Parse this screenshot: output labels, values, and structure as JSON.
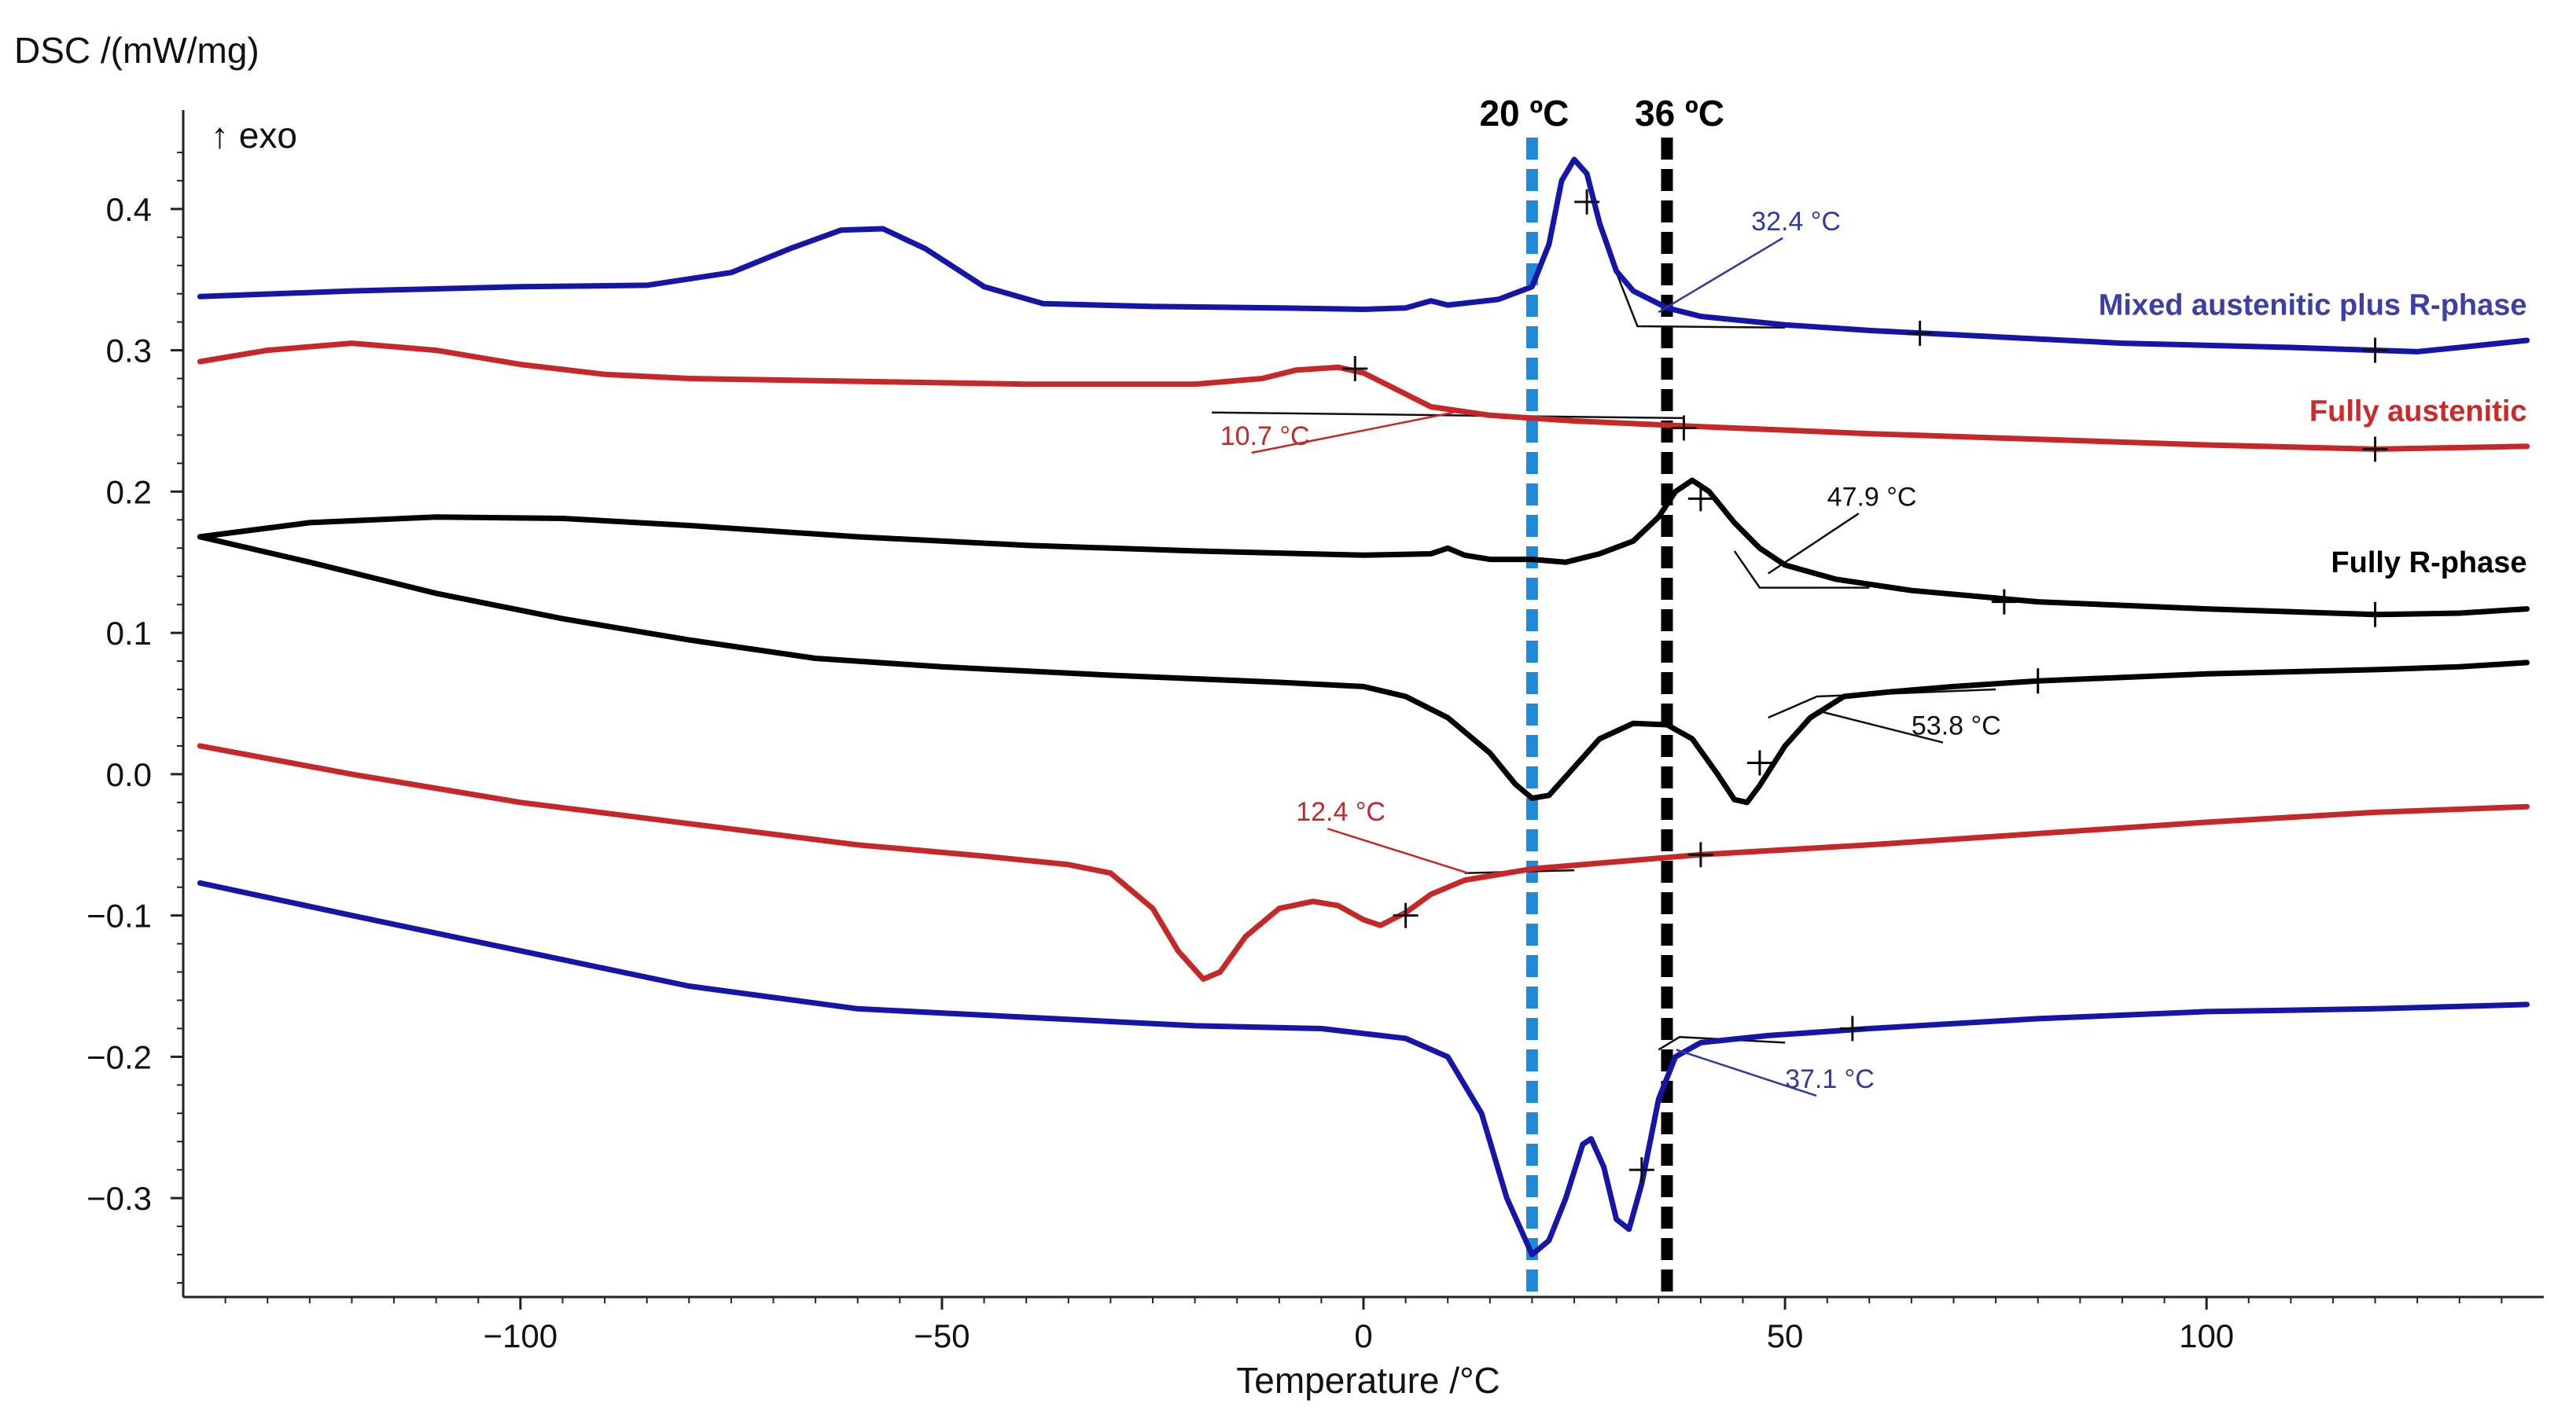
{
  "chart_data": {
    "type": "line",
    "title": "",
    "xlabel": "Temperature /°C",
    "ylabel": "DSC /(mW/mg)",
    "ylabel_note": "↑ exo",
    "xlim": [
      -140,
      140
    ],
    "ylim": [
      -0.37,
      0.47
    ],
    "xticks": [
      -100,
      -50,
      0,
      50,
      100
    ],
    "xtick_labels": [
      "−100",
      "−50",
      "0",
      "50",
      "100"
    ],
    "yticks": [
      0.4,
      0.3,
      0.2,
      0.1,
      0.0,
      -0.1,
      -0.2,
      -0.3
    ],
    "ytick_labels": [
      "0.4",
      "0.3",
      "0.2",
      "0.1",
      "0.0",
      "−0.1",
      "−0.2",
      "−0.3"
    ],
    "grid": false,
    "reference_lines": [
      {
        "x": 20,
        "label": "20 ºC",
        "color": "#1f8ad9"
      },
      {
        "x": 36,
        "label": "36 ºC",
        "color": "#000000"
      }
    ],
    "series_labels": [
      {
        "text": "Mixed austenitic plus R-phase",
        "color": "#3b3fa6",
        "x": 138,
        "y": 0.325
      },
      {
        "text": "Fully austenitic",
        "color": "#cc2a2a",
        "x": 138,
        "y": 0.25
      },
      {
        "text": "Fully R-phase",
        "color": "#000000",
        "x": 138,
        "y": 0.143
      }
    ],
    "series": [
      {
        "name": "Mixed austenitic plus R-phase (cooling)",
        "color": "#1515a8",
        "points": [
          [
            -138,
            0.338
          ],
          [
            -120,
            0.342
          ],
          [
            -100,
            0.345
          ],
          [
            -85,
            0.346
          ],
          [
            -75,
            0.355
          ],
          [
            -68,
            0.372
          ],
          [
            -62,
            0.385
          ],
          [
            -57,
            0.386
          ],
          [
            -52,
            0.372
          ],
          [
            -45,
            0.345
          ],
          [
            -38,
            0.333
          ],
          [
            -25,
            0.331
          ],
          [
            -10,
            0.33
          ],
          [
            0,
            0.329
          ],
          [
            5,
            0.33
          ],
          [
            8,
            0.335
          ],
          [
            10,
            0.332
          ],
          [
            16,
            0.336
          ],
          [
            20,
            0.345
          ],
          [
            22,
            0.375
          ],
          [
            23.5,
            0.42
          ],
          [
            25,
            0.435
          ],
          [
            26.5,
            0.425
          ],
          [
            28,
            0.39
          ],
          [
            30,
            0.356
          ],
          [
            32,
            0.342
          ],
          [
            36,
            0.33
          ],
          [
            40,
            0.324
          ],
          [
            50,
            0.318
          ],
          [
            60,
            0.314
          ],
          [
            70,
            0.311
          ],
          [
            90,
            0.305
          ],
          [
            110,
            0.302
          ],
          [
            120,
            0.3
          ],
          [
            125,
            0.299
          ],
          [
            130,
            0.302
          ],
          [
            138,
            0.307
          ]
        ]
      },
      {
        "name": "Fully austenitic (cooling)",
        "color": "#c62828",
        "points": [
          [
            -138,
            0.292
          ],
          [
            -130,
            0.3
          ],
          [
            -120,
            0.305
          ],
          [
            -110,
            0.3
          ],
          [
            -100,
            0.29
          ],
          [
            -90,
            0.283
          ],
          [
            -80,
            0.28
          ],
          [
            -60,
            0.278
          ],
          [
            -40,
            0.276
          ],
          [
            -30,
            0.276
          ],
          [
            -20,
            0.276
          ],
          [
            -12,
            0.28
          ],
          [
            -8,
            0.286
          ],
          [
            -3,
            0.288
          ],
          [
            0,
            0.284
          ],
          [
            4,
            0.272
          ],
          [
            8,
            0.26
          ],
          [
            15,
            0.254
          ],
          [
            25,
            0.25
          ],
          [
            40,
            0.246
          ],
          [
            60,
            0.241
          ],
          [
            80,
            0.237
          ],
          [
            100,
            0.233
          ],
          [
            120,
            0.23
          ],
          [
            138,
            0.232
          ]
        ]
      },
      {
        "name": "Fully R-phase (cooling)",
        "color": "#000000",
        "points": [
          [
            -138,
            0.168
          ],
          [
            -125,
            0.178
          ],
          [
            -110,
            0.182
          ],
          [
            -95,
            0.181
          ],
          [
            -80,
            0.176
          ],
          [
            -60,
            0.168
          ],
          [
            -40,
            0.162
          ],
          [
            -20,
            0.158
          ],
          [
            0,
            0.155
          ],
          [
            8,
            0.156
          ],
          [
            10,
            0.16
          ],
          [
            12,
            0.155
          ],
          [
            15,
            0.152
          ],
          [
            20,
            0.152
          ],
          [
            24,
            0.15
          ],
          [
            28,
            0.156
          ],
          [
            32,
            0.165
          ],
          [
            35,
            0.182
          ],
          [
            37,
            0.2
          ],
          [
            39,
            0.208
          ],
          [
            41,
            0.2
          ],
          [
            44,
            0.178
          ],
          [
            47,
            0.16
          ],
          [
            50,
            0.148
          ],
          [
            56,
            0.138
          ],
          [
            65,
            0.13
          ],
          [
            80,
            0.122
          ],
          [
            100,
            0.117
          ],
          [
            120,
            0.113
          ],
          [
            130,
            0.114
          ],
          [
            138,
            0.117
          ]
        ]
      },
      {
        "name": "Fully R-phase (heating)",
        "color": "#000000",
        "points": [
          [
            -138,
            0.168
          ],
          [
            -125,
            0.15
          ],
          [
            -110,
            0.128
          ],
          [
            -95,
            0.11
          ],
          [
            -80,
            0.095
          ],
          [
            -65,
            0.082
          ],
          [
            -50,
            0.076
          ],
          [
            -30,
            0.07
          ],
          [
            -10,
            0.065
          ],
          [
            0,
            0.062
          ],
          [
            5,
            0.055
          ],
          [
            10,
            0.04
          ],
          [
            15,
            0.015
          ],
          [
            18,
            -0.007
          ],
          [
            20,
            -0.017
          ],
          [
            22,
            -0.015
          ],
          [
            25,
            0.005
          ],
          [
            28,
            0.025
          ],
          [
            32,
            0.036
          ],
          [
            36,
            0.035
          ],
          [
            39,
            0.025
          ],
          [
            42,
            0.0
          ],
          [
            44,
            -0.018
          ],
          [
            45.5,
            -0.02
          ],
          [
            47,
            -0.008
          ],
          [
            50,
            0.02
          ],
          [
            53,
            0.04
          ],
          [
            57,
            0.055
          ],
          [
            62,
            0.058
          ],
          [
            70,
            0.062
          ],
          [
            80,
            0.066
          ],
          [
            100,
            0.071
          ],
          [
            120,
            0.074
          ],
          [
            130,
            0.076
          ],
          [
            138,
            0.079
          ]
        ]
      },
      {
        "name": "Fully austenitic (heating)",
        "color": "#c62828",
        "points": [
          [
            -138,
            0.02
          ],
          [
            -120,
            0.0
          ],
          [
            -100,
            -0.02
          ],
          [
            -80,
            -0.035
          ],
          [
            -60,
            -0.05
          ],
          [
            -45,
            -0.058
          ],
          [
            -35,
            -0.064
          ],
          [
            -30,
            -0.07
          ],
          [
            -25,
            -0.095
          ],
          [
            -22,
            -0.125
          ],
          [
            -19,
            -0.145
          ],
          [
            -17,
            -0.14
          ],
          [
            -14,
            -0.115
          ],
          [
            -10,
            -0.095
          ],
          [
            -6,
            -0.09
          ],
          [
            -3,
            -0.093
          ],
          [
            0,
            -0.103
          ],
          [
            2,
            -0.107
          ],
          [
            5,
            -0.098
          ],
          [
            8,
            -0.085
          ],
          [
            12,
            -0.075
          ],
          [
            20,
            -0.067
          ],
          [
            30,
            -0.062
          ],
          [
            40,
            -0.057
          ],
          [
            60,
            -0.05
          ],
          [
            80,
            -0.042
          ],
          [
            100,
            -0.034
          ],
          [
            120,
            -0.027
          ],
          [
            138,
            -0.023
          ]
        ]
      },
      {
        "name": "Mixed austenitic plus R-phase (heating)",
        "color": "#1515a8",
        "points": [
          [
            -138,
            -0.077
          ],
          [
            -120,
            -0.1
          ],
          [
            -100,
            -0.125
          ],
          [
            -80,
            -0.15
          ],
          [
            -60,
            -0.166
          ],
          [
            -40,
            -0.172
          ],
          [
            -20,
            -0.178
          ],
          [
            -5,
            -0.18
          ],
          [
            5,
            -0.187
          ],
          [
            10,
            -0.2
          ],
          [
            14,
            -0.24
          ],
          [
            17,
            -0.3
          ],
          [
            20,
            -0.34
          ],
          [
            22,
            -0.33
          ],
          [
            24,
            -0.3
          ],
          [
            26,
            -0.262
          ],
          [
            27,
            -0.258
          ],
          [
            28.5,
            -0.278
          ],
          [
            30,
            -0.315
          ],
          [
            31.5,
            -0.322
          ],
          [
            33,
            -0.29
          ],
          [
            35,
            -0.23
          ],
          [
            37,
            -0.2
          ],
          [
            40,
            -0.19
          ],
          [
            48,
            -0.185
          ],
          [
            60,
            -0.18
          ],
          [
            80,
            -0.173
          ],
          [
            100,
            -0.168
          ],
          [
            120,
            -0.166
          ],
          [
            138,
            -0.163
          ]
        ]
      }
    ],
    "annotations": [
      {
        "text": "32.4 °C",
        "color": "#2e3a9e",
        "x": 46,
        "y": 0.385,
        "tx": 35,
        "ty": 0.327
      },
      {
        "text": "10.7 °C",
        "color": "#c62828",
        "x": -17,
        "y": 0.233,
        "tx": 10.7,
        "ty": 0.256
      },
      {
        "text": "47.9 °C",
        "color": "#111111",
        "x": 55,
        "y": 0.19,
        "tx": 48,
        "ty": 0.142
      },
      {
        "text": "53.8 °C",
        "color": "#111111",
        "x": 65,
        "y": 0.028,
        "tx": 53.8,
        "ty": 0.045
      },
      {
        "text": "12.4 °C",
        "color": "#c62828",
        "x": -8,
        "y": -0.033,
        "tx": 12.4,
        "ty": -0.07
      },
      {
        "text": "37.1 °C",
        "color": "#2e3a9e",
        "x": 50,
        "y": -0.222,
        "tx": 37.1,
        "ty": -0.195
      }
    ],
    "crosses": [
      {
        "x": 26.5,
        "y": 0.405,
        "color": "#1515a8"
      },
      {
        "x": 66,
        "y": 0.312,
        "color": "#1515a8"
      },
      {
        "x": 120,
        "y": 0.3,
        "color": "#1515a8"
      },
      {
        "x": -1,
        "y": 0.287,
        "color": "#c62828"
      },
      {
        "x": 38,
        "y": 0.245,
        "color": "#c62828"
      },
      {
        "x": 120,
        "y": 0.23,
        "color": "#c62828"
      },
      {
        "x": 40,
        "y": 0.195,
        "color": "#000000"
      },
      {
        "x": 76,
        "y": 0.122,
        "color": "#000000"
      },
      {
        "x": 120,
        "y": 0.113,
        "color": "#000000"
      },
      {
        "x": 80,
        "y": 0.066,
        "color": "#000000"
      },
      {
        "x": 47,
        "y": 0.008,
        "color": "#000000"
      },
      {
        "x": 40,
        "y": -0.057,
        "color": "#c62828"
      },
      {
        "x": 5,
        "y": -0.1,
        "color": "#c62828"
      },
      {
        "x": 33,
        "y": -0.28,
        "color": "#1515a8"
      },
      {
        "x": 58,
        "y": -0.18,
        "color": "#1515a8"
      }
    ],
    "tangents": [
      {
        "color": "#111111",
        "points": [
          [
            30,
            0.355
          ],
          [
            32.5,
            0.317
          ],
          [
            50,
            0.316
          ]
        ]
      },
      {
        "color": "#111111",
        "points": [
          [
            -18,
            0.256
          ],
          [
            38,
            0.252
          ]
        ]
      },
      {
        "color": "#111111",
        "points": [
          [
            44,
            0.158
          ],
          [
            47,
            0.132
          ],
          [
            60,
            0.132
          ]
        ]
      },
      {
        "color": "#111111",
        "points": [
          [
            48,
            0.04
          ],
          [
            53.8,
            0.055
          ],
          [
            75,
            0.06
          ]
        ]
      },
      {
        "color": "#111111",
        "points": [
          [
            12,
            -0.07
          ],
          [
            25,
            -0.068
          ]
        ]
      },
      {
        "color": "#111111",
        "points": [
          [
            35,
            -0.195
          ],
          [
            37.5,
            -0.186
          ],
          [
            50,
            -0.19
          ]
        ]
      }
    ]
  }
}
